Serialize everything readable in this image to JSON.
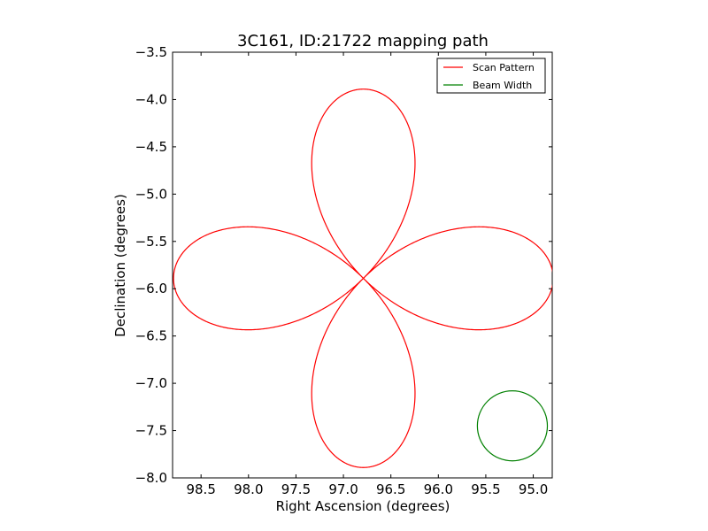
{
  "chart_data": {
    "type": "line",
    "title": "3C161, ID:21722 mapping path",
    "xlabel": "Right Ascension (degrees)",
    "ylabel": "Declination (degrees)",
    "xlim": [
      98.8,
      94.8
    ],
    "ylim": [
      -8.0,
      -3.5
    ],
    "x_inverted": true,
    "grid": false,
    "legend_position": "top-right",
    "xticks": [
      98.5,
      98.0,
      97.5,
      97.0,
      96.5,
      96.0,
      95.5,
      95.0
    ],
    "xtick_labels": [
      "98.5",
      "98.0",
      "97.5",
      "97.0",
      "96.5",
      "96.0",
      "95.5",
      "95.0"
    ],
    "yticks": [
      -3.5,
      -4.0,
      -4.5,
      -5.0,
      -5.5,
      -6.0,
      -6.5,
      -7.0,
      -7.5,
      -8.0
    ],
    "ytick_labels": [
      "−3.5",
      "−4.0",
      "−4.5",
      "−5.0",
      "−5.5",
      "−6.0",
      "−6.5",
      "−7.0",
      "−7.5",
      "−8.0"
    ],
    "series": [
      {
        "name": "Scan Pattern",
        "color": "#ff0000",
        "shape": "four-lobed rose curve",
        "center": [
          96.79,
          -5.89
        ],
        "extent_ra": [
          94.8,
          98.8
        ],
        "extent_dec": [
          -7.89,
          -3.89
        ]
      },
      {
        "name": "Beam Width",
        "color": "#008000",
        "shape": "circle",
        "center": [
          95.22,
          -7.45
        ],
        "radius_dec": 0.37
      }
    ]
  }
}
